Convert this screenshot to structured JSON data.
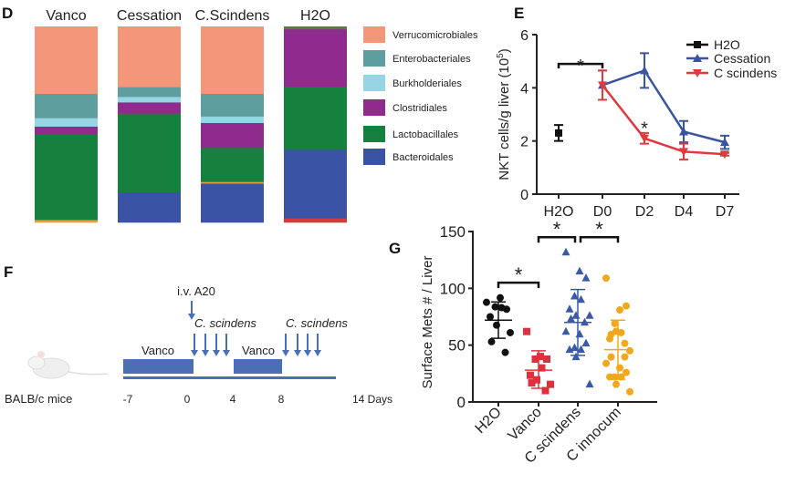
{
  "panels": {
    "d": "D",
    "e": "E",
    "f": "F",
    "g": "G"
  },
  "chart_data": [
    {
      "type": "bar",
      "stacked": true,
      "panel": "D",
      "categories": [
        "Vanco",
        "Cessation",
        "C.Scindens",
        "H2O"
      ],
      "legend": [
        "Verrucomicrobiales",
        "Enterobacteriales",
        "Burkholderiales",
        "Clostridiales",
        "Lactobacillales",
        "Bacteroidales"
      ],
      "legend_placement": "right",
      "series": [
        {
          "name": "Verrucomicrobiales",
          "color": "#F4967A",
          "values": [
            34.4,
            31.0,
            34.4,
            0
          ]
        },
        {
          "name": "Enterobacteriales",
          "color": "#5E9E9E",
          "values": [
            12.4,
            5.0,
            11.6,
            0
          ]
        },
        {
          "name": "Burkholderiales",
          "color": "#96D5E3",
          "values": [
            4.3,
            2.8,
            3.3,
            0
          ]
        },
        {
          "name": "Clostridiales",
          "color": "#8E2B8C",
          "values": [
            3.9,
            5.7,
            12.7,
            29.1
          ]
        },
        {
          "name": "Lactobacillales",
          "color": "#16803F",
          "values": [
            43.7,
            40.3,
            17.4,
            32.1
          ]
        },
        {
          "name": "Bacteroidales",
          "color": "#3A53A4",
          "values": [
            0,
            15.2,
            19.8,
            34.9
          ]
        }
      ],
      "unlabeled_segments": [
        {
          "category": "Vanco",
          "position": "bottom",
          "color": "#E8A040",
          "value": 1.2
        },
        {
          "category": "C.Scindens",
          "position": "between-Lactobacillales-Bacteroidales",
          "color": "#E8A040",
          "value": 0.8
        },
        {
          "category": "H2O",
          "position": "top",
          "color": "#5B7A45",
          "value": 1.5
        },
        {
          "category": "H2O",
          "position": "bottom",
          "color": "#D83A3A",
          "value": 2.0
        }
      ],
      "ylim": [
        0,
        100
      ],
      "axes_visible": false
    },
    {
      "type": "line",
      "panel": "E",
      "categories": [
        "H2O",
        "D0",
        "D2",
        "D4",
        "D7"
      ],
      "ylabel": "NKT cells/g liver (10",
      "ylabel_sup": "5",
      "ylabel_end": ")",
      "ylim": [
        0,
        6
      ],
      "yticks": [
        "0",
        "2",
        "4",
        "6"
      ],
      "legend_placement": "top-right",
      "series": [
        {
          "name": "H2O",
          "color": "#111111",
          "marker": "square",
          "x": [
            "H2O"
          ],
          "y": [
            2.3
          ],
          "err": [
            0.3
          ]
        },
        {
          "name": "Cessation",
          "color": "#3A55A0",
          "marker": "triangle-up",
          "x": [
            "D0",
            "D2",
            "D4",
            "D7"
          ],
          "y": [
            4.1,
            4.65,
            2.35,
            1.95
          ],
          "err": [
            0.55,
            0.65,
            0.4,
            0.25
          ]
        },
        {
          "name": "C scindens",
          "color": "#E0393E",
          "marker": "triangle-down",
          "x": [
            "D0",
            "D2",
            "D4",
            "D7"
          ],
          "y": [
            4.1,
            2.1,
            1.6,
            1.5
          ],
          "err": [
            0.55,
            0.2,
            0.3,
            0.05
          ]
        }
      ],
      "annotations": [
        {
          "text": "*",
          "type": "bracket",
          "from": "H2O",
          "to": "D0",
          "y": 4.9
        },
        {
          "text": "*",
          "type": "label",
          "at": "D2",
          "y": 2.55
        }
      ]
    },
    {
      "type": "scatter",
      "panel": "G",
      "categories": [
        "H2O",
        "Vanco",
        "C scindens",
        "C innocum"
      ],
      "ylabel": "Surface Mets # / Liver",
      "ylim": [
        0,
        150
      ],
      "yticks": [
        "0",
        "50",
        "100",
        "150"
      ],
      "series": [
        {
          "name": "H2O",
          "color": "#111111",
          "marker": "circle",
          "mean": 72,
          "sd": [
            56,
            88
          ],
          "values": [
            87.7,
            91.7,
            81.6,
            83.7,
            83,
            75,
            67.6,
            61,
            53,
            43.6
          ]
        },
        {
          "name": "Vanco",
          "color": "#E0303E",
          "marker": "square",
          "mean": 28,
          "sd": [
            12,
            45
          ],
          "values": [
            62,
            40,
            37.7,
            37.7,
            30,
            23.5,
            19.5,
            15.5,
            16.8,
            10
          ]
        },
        {
          "name": "C scindens",
          "color": "#3A5AA8",
          "marker": "triangle",
          "mean": 70,
          "sd": [
            41,
            99
          ],
          "values": [
            131.8,
            115,
            109,
            93,
            90,
            81.6,
            76,
            76,
            73,
            70,
            62,
            59.6,
            51.6,
            47.6,
            46,
            46,
            39.6,
            15.5
          ]
        },
        {
          "name": "C innocum",
          "color": "#F2A81D",
          "marker": "circle",
          "mean": 46,
          "sd": [
            20,
            72
          ],
          "values": [
            109,
            81,
            84.5,
            69,
            61,
            55.6,
            62.3,
            45,
            39.6,
            39.6,
            34,
            30,
            26,
            22,
            22,
            22,
            15.5,
            9,
            59.5,
            51.6
          ]
        }
      ],
      "annotations": [
        {
          "text": "*",
          "from": "H2O",
          "to": "Vanco",
          "y": 105
        },
        {
          "text": "*",
          "from": "Vanco",
          "to": "C scindens",
          "y": 145
        },
        {
          "text": "*",
          "from": "C scindens",
          "to": "C innocum",
          "y": 145
        }
      ]
    }
  ],
  "schedule": {
    "panel": "F",
    "mouse_label": "BALB/c mice",
    "injection_label": "i.v. A20",
    "treatment_label": "Vanco",
    "bacteria_label": "C. scindens",
    "ticks": [
      "-7",
      "0",
      "4",
      "8",
      "14 Days"
    ],
    "color": "#4A6FB5"
  }
}
